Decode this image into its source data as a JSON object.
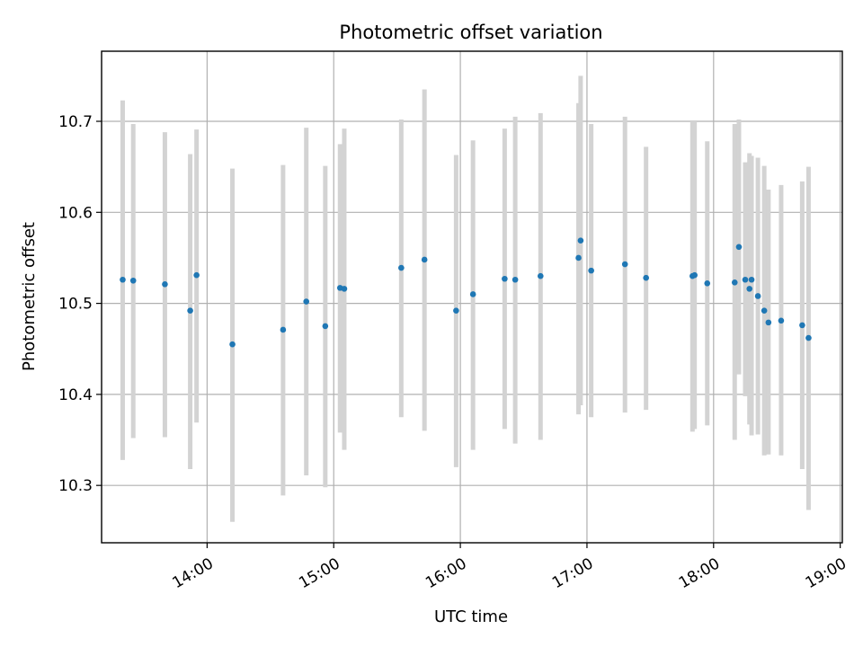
{
  "chart_data": {
    "type": "scatter",
    "title": "Photometric offset variation",
    "xlabel": "UTC time",
    "ylabel": "Photometric offset",
    "xlim": [
      "13:10",
      "19:01"
    ],
    "ylim": [
      10.237,
      10.777
    ],
    "xticks": [
      "14:00",
      "15:00",
      "16:00",
      "17:00",
      "18:00",
      "19:00"
    ],
    "yticks": [
      10.3,
      10.4,
      10.5,
      10.6,
      10.7
    ],
    "grid": true,
    "colors": {
      "point": "#1f77b4",
      "errorbar": "#d3d3d3"
    },
    "series": [
      {
        "points": [
          {
            "t": "13:20",
            "y": 10.526,
            "lo": 10.328,
            "hi": 10.723
          },
          {
            "t": "13:25",
            "y": 10.525,
            "lo": 10.352,
            "hi": 10.697
          },
          {
            "t": "13:40",
            "y": 10.521,
            "lo": 10.353,
            "hi": 10.688
          },
          {
            "t": "13:52",
            "y": 10.492,
            "lo": 10.318,
            "hi": 10.664
          },
          {
            "t": "13:55",
            "y": 10.531,
            "lo": 10.369,
            "hi": 10.691
          },
          {
            "t": "14:12",
            "y": 10.455,
            "lo": 10.26,
            "hi": 10.648
          },
          {
            "t": "14:36",
            "y": 10.471,
            "lo": 10.289,
            "hi": 10.652
          },
          {
            "t": "14:47",
            "y": 10.502,
            "lo": 10.311,
            "hi": 10.693
          },
          {
            "t": "14:56",
            "y": 10.475,
            "lo": 10.298,
            "hi": 10.651
          },
          {
            "t": "15:03",
            "y": 10.517,
            "lo": 10.358,
            "hi": 10.675
          },
          {
            "t": "15:05",
            "y": 10.516,
            "lo": 10.339,
            "hi": 10.692
          },
          {
            "t": "15:32",
            "y": 10.539,
            "lo": 10.375,
            "hi": 10.702
          },
          {
            "t": "15:43",
            "y": 10.548,
            "lo": 10.36,
            "hi": 10.735
          },
          {
            "t": "15:58",
            "y": 10.492,
            "lo": 10.32,
            "hi": 10.663
          },
          {
            "t": "16:06",
            "y": 10.51,
            "lo": 10.339,
            "hi": 10.679
          },
          {
            "t": "16:21",
            "y": 10.527,
            "lo": 10.362,
            "hi": 10.692
          },
          {
            "t": "16:26",
            "y": 10.526,
            "lo": 10.346,
            "hi": 10.705
          },
          {
            "t": "16:38",
            "y": 10.53,
            "lo": 10.35,
            "hi": 10.709
          },
          {
            "t": "16:56",
            "y": 10.55,
            "lo": 10.378,
            "hi": 10.72
          },
          {
            "t": "16:57",
            "y": 10.569,
            "lo": 10.388,
            "hi": 10.75
          },
          {
            "t": "17:02",
            "y": 10.536,
            "lo": 10.375,
            "hi": 10.697
          },
          {
            "t": "17:18",
            "y": 10.543,
            "lo": 10.38,
            "hi": 10.705
          },
          {
            "t": "17:28",
            "y": 10.528,
            "lo": 10.383,
            "hi": 10.672
          },
          {
            "t": "17:50",
            "y": 10.53,
            "lo": 10.359,
            "hi": 10.7
          },
          {
            "t": "17:51",
            "y": 10.531,
            "lo": 10.362,
            "hi": 10.7
          },
          {
            "t": "17:57",
            "y": 10.522,
            "lo": 10.366,
            "hi": 10.678
          },
          {
            "t": "18:10",
            "y": 10.523,
            "lo": 10.35,
            "hi": 10.697
          },
          {
            "t": "18:12",
            "y": 10.562,
            "lo": 10.422,
            "hi": 10.702
          },
          {
            "t": "18:15",
            "y": 10.526,
            "lo": 10.398,
            "hi": 10.655
          },
          {
            "t": "18:17",
            "y": 10.516,
            "lo": 10.367,
            "hi": 10.665
          },
          {
            "t": "18:18",
            "y": 10.526,
            "lo": 10.355,
            "hi": 10.662
          },
          {
            "t": "18:21",
            "y": 10.508,
            "lo": 10.356,
            "hi": 10.66
          },
          {
            "t": "18:24",
            "y": 10.492,
            "lo": 10.333,
            "hi": 10.651
          },
          {
            "t": "18:26",
            "y": 10.479,
            "lo": 10.334,
            "hi": 10.625
          },
          {
            "t": "18:32",
            "y": 10.481,
            "lo": 10.333,
            "hi": 10.63
          },
          {
            "t": "18:42",
            "y": 10.476,
            "lo": 10.318,
            "hi": 10.634
          },
          {
            "t": "18:45",
            "y": 10.462,
            "lo": 10.273,
            "hi": 10.65
          }
        ]
      }
    ]
  }
}
